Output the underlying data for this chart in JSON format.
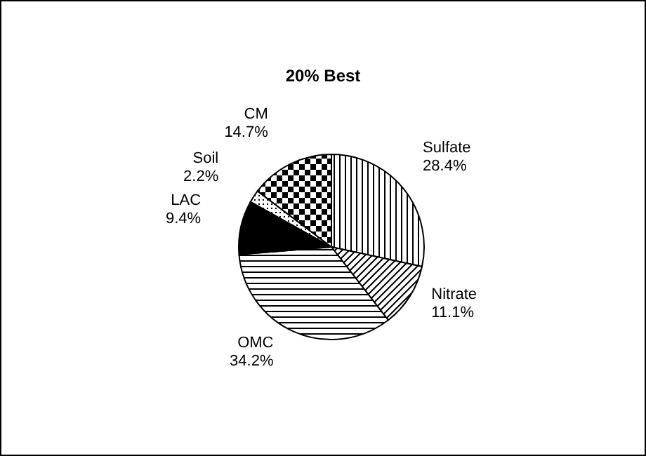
{
  "chart_data": {
    "type": "pie",
    "title": "20% Best",
    "categories": [
      "Sulfate",
      "Nitrate",
      "OMC",
      "LAC",
      "Soil",
      "CM"
    ],
    "values": [
      28.4,
      11.1,
      34.2,
      9.4,
      2.2,
      14.7
    ],
    "value_labels": [
      "28.4%",
      "11.1%",
      "34.2%",
      "9.4%",
      "2.2%",
      "14.7%"
    ],
    "colors": [
      "#000000",
      "#000000",
      "#000000",
      "#000000",
      "#000000",
      "#000000"
    ]
  }
}
